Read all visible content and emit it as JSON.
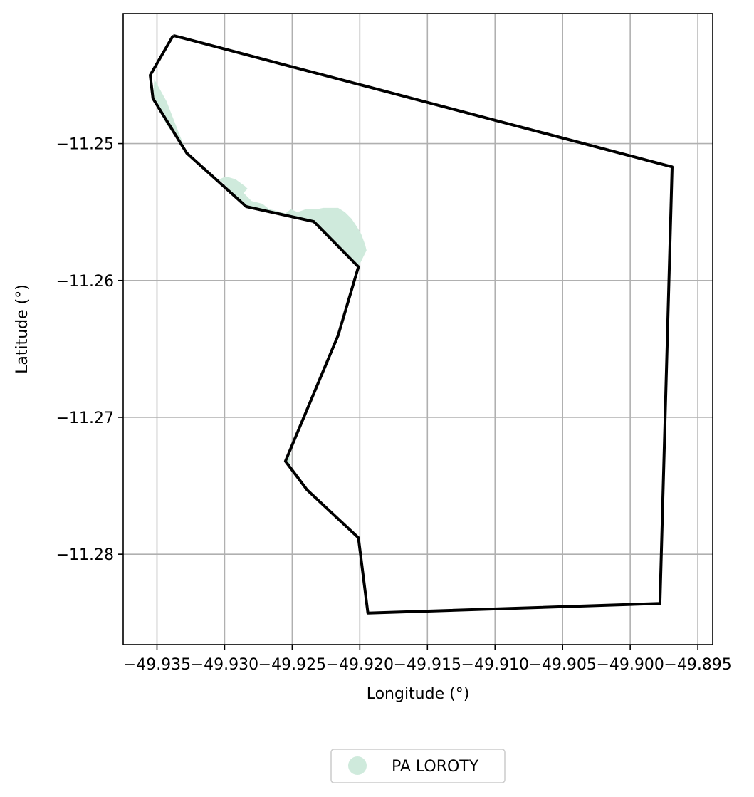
{
  "chart_data": {
    "type": "map",
    "xlabel": "Longitude (°)",
    "ylabel": "Latitude (°)",
    "xlim": [
      -49.9375,
      -49.8939
    ],
    "ylim": [
      -11.2866,
      -11.2405
    ],
    "grid": true,
    "x_ticks": [
      {
        "value": -49.935,
        "label": "−49.935"
      },
      {
        "value": -49.93,
        "label": "−49.930"
      },
      {
        "value": -49.925,
        "label": "−49.925"
      },
      {
        "value": -49.92,
        "label": "−49.920"
      },
      {
        "value": -49.915,
        "label": "−49.915"
      },
      {
        "value": -49.91,
        "label": "−49.910"
      },
      {
        "value": -49.905,
        "label": "−49.905"
      },
      {
        "value": -49.9,
        "label": "−49.900"
      },
      {
        "value": -49.895,
        "label": "−49.895"
      }
    ],
    "y_ticks": [
      {
        "value": -11.25,
        "label": "−11.25"
      },
      {
        "value": -11.26,
        "label": "−11.26"
      },
      {
        "value": -11.27,
        "label": "−11.27"
      },
      {
        "value": -11.28,
        "label": "−11.28"
      }
    ],
    "boundary": {
      "color": "#000000",
      "coordinates": [
        [
          -49.9338,
          -11.2421
        ],
        [
          -49.9355,
          -11.245
        ],
        [
          -49.9353,
          -11.2467
        ],
        [
          -49.9328,
          -11.2507
        ],
        [
          -49.9284,
          -11.2546
        ],
        [
          -49.9234,
          -11.2557
        ],
        [
          -49.9201,
          -11.259
        ],
        [
          -49.9216,
          -11.264
        ],
        [
          -49.9255,
          -11.2732
        ],
        [
          -49.9239,
          -11.2753
        ],
        [
          -49.9201,
          -11.2788
        ],
        [
          -49.9194,
          -11.2843
        ],
        [
          -49.8978,
          -11.2836
        ],
        [
          -49.8969,
          -11.2517
        ],
        [
          -49.9338,
          -11.2421
        ]
      ]
    },
    "areas": [
      {
        "name": "PA LOROTY",
        "color": "#cfeadc",
        "polygons": [
          [
            [
              -49.9353,
              -11.2467
            ],
            [
              -49.9352,
              -11.2453
            ],
            [
              -49.9343,
              -11.2469
            ],
            [
              -49.9328,
              -11.2507
            ],
            [
              -49.9301,
              -11.2529
            ],
            [
              -49.929,
              -11.254
            ],
            [
              -49.9284,
              -11.2546
            ],
            [
              -49.9234,
              -11.2557
            ],
            [
              -49.9201,
              -11.259
            ],
            [
              -49.9195,
              -11.2578
            ],
            [
              -49.9196,
              -11.2574
            ],
            [
              -49.9199,
              -11.2566
            ],
            [
              -49.9202,
              -11.2561
            ],
            [
              -49.9206,
              -11.2555
            ],
            [
              -49.9211,
              -11.255
            ],
            [
              -49.9216,
              -11.2547
            ],
            [
              -49.9222,
              -11.2547
            ],
            [
              -49.9227,
              -11.2547
            ],
            [
              -49.9232,
              -11.2548
            ],
            [
              -49.924,
              -11.2548
            ],
            [
              -49.9246,
              -11.255
            ],
            [
              -49.9251,
              -11.2548
            ],
            [
              -49.9255,
              -11.2551
            ],
            [
              -49.9262,
              -11.2549
            ],
            [
              -49.9267,
              -11.2548
            ],
            [
              -49.9272,
              -11.2544
            ],
            [
              -49.928,
              -11.2542
            ],
            [
              -49.9286,
              -11.2536
            ],
            [
              -49.9283,
              -11.2533
            ],
            [
              -49.9285,
              -11.2531
            ],
            [
              -49.9292,
              -11.2526
            ],
            [
              -49.9299,
              -11.2524
            ],
            [
              -49.9306,
              -11.2527
            ],
            [
              -49.9314,
              -11.2518
            ],
            [
              -49.9328,
              -11.2507
            ],
            [
              -49.9343,
              -11.2486
            ],
            [
              -49.9353,
              -11.2467
            ]
          ],
          [
            [
              -49.9255,
              -11.2732
            ],
            [
              -49.9251,
              -11.2727
            ],
            [
              -49.9252,
              -11.2735
            ],
            [
              -49.9255,
              -11.2732
            ]
          ]
        ]
      }
    ],
    "legend": {
      "position": "bottom-center",
      "entries": [
        {
          "label": "PA LOROTY",
          "color": "#cfeadc"
        }
      ]
    }
  }
}
